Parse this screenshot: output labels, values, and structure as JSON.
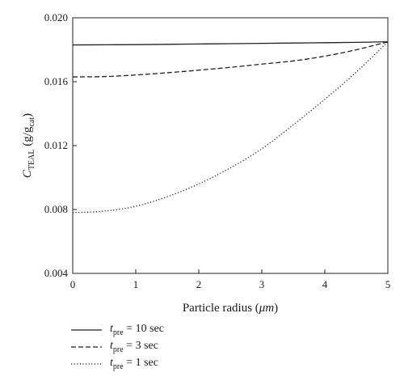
{
  "chart_data": {
    "type": "line",
    "xlabel_main": "Particle radius (",
    "xlabel_unit": "μm",
    "xlabel_end": ")",
    "ylabel_var": "C",
    "ylabel_sub": "TEAL",
    "ylabel_unit_pre": " (g/g",
    "ylabel_unit_sub": "cat",
    "ylabel_unit_post": ")",
    "xlim": [
      0,
      5
    ],
    "ylim": [
      0.004,
      0.02
    ],
    "xticks": [
      0,
      1,
      2,
      3,
      4,
      5
    ],
    "xtick_labels": [
      "0",
      "1",
      "2",
      "3",
      "4",
      "5"
    ],
    "yticks": [
      0.004,
      0.008,
      0.012,
      0.016,
      0.02
    ],
    "ytick_labels": [
      "0.004",
      "0.008",
      "0.012",
      "0.016",
      "0.020"
    ],
    "grid": false,
    "legend_position": "bottom-left, below plot",
    "series": [
      {
        "name": "t_pre = 10 sec",
        "style": "solid",
        "x": [
          0,
          0.5,
          1,
          1.5,
          2,
          2.5,
          3,
          3.5,
          4,
          4.5,
          5
        ],
        "y": [
          0.0183,
          0.01831,
          0.01832,
          0.01834,
          0.01836,
          0.01838,
          0.0184,
          0.01842,
          0.01844,
          0.01846,
          0.0185
        ]
      },
      {
        "name": "t_pre = 3 sec",
        "style": "dashed",
        "x": [
          0,
          0.5,
          1,
          1.5,
          2,
          2.5,
          3,
          3.5,
          4,
          4.5,
          5
        ],
        "y": [
          0.0163,
          0.01632,
          0.01642,
          0.01656,
          0.01672,
          0.0169,
          0.0171,
          0.0173,
          0.0176,
          0.018,
          0.0185
        ]
      },
      {
        "name": "t_pre = 1 sec",
        "style": "dotted",
        "x": [
          0,
          0.5,
          1,
          1.5,
          2,
          2.5,
          3,
          3.5,
          4,
          4.5,
          5
        ],
        "y": [
          0.0078,
          0.0079,
          0.0082,
          0.0088,
          0.0096,
          0.0106,
          0.0118,
          0.0133,
          0.0149,
          0.0166,
          0.0185
        ]
      }
    ],
    "legend": [
      {
        "var": "t",
        "sub": "pre",
        "text": " = 10 sec",
        "style": "solid"
      },
      {
        "var": "t",
        "sub": "pre",
        "text": " = 3 sec",
        "style": "dashed"
      },
      {
        "var": "t",
        "sub": "pre",
        "text": " = 1 sec",
        "style": "dotted"
      }
    ]
  }
}
